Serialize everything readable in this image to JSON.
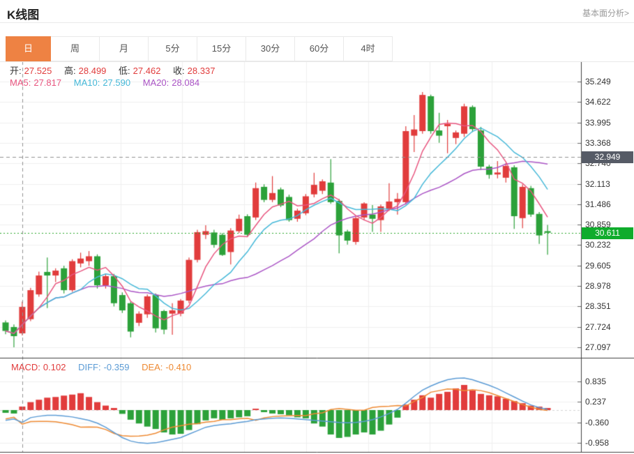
{
  "header": {
    "title": "K线图",
    "link": "基本面分析>"
  },
  "tabs": [
    {
      "name": "tab-day",
      "label": "日",
      "active": true
    },
    {
      "name": "tab-week",
      "label": "周",
      "active": false
    },
    {
      "name": "tab-month",
      "label": "月",
      "active": false
    },
    {
      "name": "tab-5min",
      "label": "5分",
      "active": false
    },
    {
      "name": "tab-15min",
      "label": "15分",
      "active": false
    },
    {
      "name": "tab-30min",
      "label": "30分",
      "active": false
    },
    {
      "name": "tab-60min",
      "label": "60分",
      "active": false
    },
    {
      "name": "tab-4hour",
      "label": "4时",
      "active": false
    }
  ],
  "ohlc_row": {
    "open_label": "开:",
    "open": "27.525",
    "high_label": "高:",
    "high": "28.499",
    "low_label": "低:",
    "low": "27.462",
    "close_label": "收:",
    "close": "28.337"
  },
  "ma_row": {
    "ma5_label": "MA5:",
    "ma5": "27.817",
    "ma10_label": "MA10:",
    "ma10": "27.590",
    "ma20_label": "MA20:",
    "ma20": "28.084"
  },
  "macd_row": {
    "macd_label": "MACD:",
    "macd": "0.102",
    "diff_label": "DIFF:",
    "diff": "-0.359",
    "dea_label": "DEA:",
    "dea": "-0.410"
  },
  "colors": {
    "up": "#e13c3c",
    "down": "#2ca13a",
    "ma5": "#e8557f",
    "ma10": "#45b8d8",
    "ma20": "#aa54c5",
    "diff_line": "#5b9bd5",
    "dea_line": "#ee8a33",
    "value_red": "#e13c3c",
    "tab_accent": "#ee8243",
    "badge_dark": "#565b66",
    "badge_green": "#0fac2c",
    "crosshair": "#909090",
    "last_price_line": "#2aa62a",
    "grid": "#efefef",
    "frame": "#3f3f3f"
  },
  "chart_data": {
    "type": "candlestick_with_macd",
    "title": "K线图 (daily candlestick chart with MA5/MA10/MA20 overlays and MACD pane)",
    "price_axis_ticks": [
      "35.249",
      "34.622",
      "33.995",
      "33.368",
      "32.740",
      "32.113",
      "31.486",
      "30.859",
      "30.232",
      "29.605",
      "28.978",
      "28.351",
      "27.724",
      "27.097"
    ],
    "macd_axis_ticks": [
      "0.835",
      "0.237",
      "-0.360",
      "-0.958"
    ],
    "crosshair_price": "32.949",
    "crosshair_candle_index": 2,
    "last_price": "30.611",
    "legend": [
      "MA5",
      "MA10",
      "MA20",
      "DIFF",
      "DEA",
      "MACD"
    ],
    "candles_ohlc": [
      [
        27.86,
        27.92,
        27.5,
        27.6
      ],
      [
        27.72,
        27.8,
        27.1,
        27.44
      ],
      [
        27.525,
        28.499,
        27.462,
        28.337
      ],
      [
        27.96,
        28.92,
        27.9,
        28.85
      ],
      [
        28.72,
        29.42,
        28.65,
        29.3
      ],
      [
        29.41,
        29.85,
        28.3,
        29.3
      ],
      [
        29.3,
        29.52,
        29.1,
        29.45
      ],
      [
        29.52,
        29.6,
        28.75,
        28.85
      ],
      [
        28.85,
        29.8,
        28.8,
        29.74
      ],
      [
        29.67,
        30.0,
        29.55,
        29.82
      ],
      [
        29.74,
        30.05,
        29.6,
        29.89
      ],
      [
        29.89,
        29.95,
        28.9,
        29.0
      ],
      [
        29.0,
        29.35,
        28.9,
        29.28
      ],
      [
        29.28,
        29.35,
        28.35,
        28.45
      ],
      [
        28.7,
        28.78,
        28.15,
        28.23
      ],
      [
        28.45,
        28.5,
        27.4,
        27.58
      ],
      [
        27.85,
        28.2,
        27.75,
        28.13
      ],
      [
        28.11,
        28.72,
        28.0,
        28.66
      ],
      [
        28.7,
        28.75,
        27.55,
        27.68
      ],
      [
        28.21,
        28.25,
        27.5,
        27.64
      ],
      [
        28.13,
        28.45,
        27.48,
        28.23
      ],
      [
        28.13,
        28.58,
        28.05,
        28.53
      ],
      [
        28.53,
        29.85,
        28.45,
        29.78
      ],
      [
        29.78,
        30.7,
        29.7,
        30.63
      ],
      [
        30.55,
        30.84,
        30.42,
        30.66
      ],
      [
        30.62,
        30.7,
        30.15,
        30.24
      ],
      [
        30.55,
        30.6,
        29.9,
        29.93
      ],
      [
        30.02,
        30.75,
        29.64,
        30.68
      ],
      [
        30.66,
        31.17,
        30.6,
        31.04
      ],
      [
        31.12,
        31.18,
        30.5,
        30.55
      ],
      [
        31.08,
        32.15,
        31.0,
        31.98
      ],
      [
        32.02,
        32.1,
        31.55,
        31.62
      ],
      [
        31.62,
        32.35,
        31.55,
        31.83
      ],
      [
        31.94,
        32.0,
        31.4,
        31.45
      ],
      [
        31.71,
        31.78,
        30.95,
        31.0
      ],
      [
        31.04,
        31.35,
        30.95,
        31.29
      ],
      [
        31.21,
        31.8,
        31.15,
        31.73
      ],
      [
        31.79,
        32.45,
        31.7,
        32.08
      ],
      [
        31.9,
        32.25,
        31.8,
        32.19
      ],
      [
        32.15,
        32.87,
        31.5,
        31.55
      ],
      [
        31.59,
        31.65,
        29.98,
        30.53
      ],
      [
        30.65,
        30.7,
        30.25,
        30.37
      ],
      [
        30.33,
        31.1,
        30.25,
        31.06
      ],
      [
        31.08,
        31.55,
        31.0,
        31.51
      ],
      [
        31.17,
        31.46,
        30.64,
        31.04
      ],
      [
        31.0,
        31.48,
        30.64,
        31.42
      ],
      [
        31.34,
        32.13,
        31.28,
        31.57
      ],
      [
        31.55,
        31.83,
        31.17,
        31.65
      ],
      [
        31.55,
        33.88,
        31.48,
        33.73
      ],
      [
        33.59,
        34.22,
        33.09,
        33.78
      ],
      [
        33.73,
        34.93,
        33.65,
        34.84
      ],
      [
        34.8,
        34.85,
        33.65,
        33.73
      ],
      [
        33.75,
        34.29,
        33.37,
        33.59
      ],
      [
        33.88,
        34.07,
        33.05,
        33.95
      ],
      [
        33.52,
        33.75,
        33.33,
        33.69
      ],
      [
        33.65,
        34.57,
        33.55,
        34.49
      ],
      [
        34.47,
        34.52,
        33.7,
        33.79
      ],
      [
        33.75,
        33.86,
        32.54,
        32.64
      ],
      [
        32.64,
        32.7,
        32.27,
        32.39
      ],
      [
        32.4,
        32.81,
        32.28,
        32.46
      ],
      [
        32.3,
        32.75,
        32.15,
        32.66
      ],
      [
        32.62,
        32.68,
        30.73,
        31.12
      ],
      [
        31.06,
        32.1,
        30.75,
        32.02
      ],
      [
        31.98,
        32.05,
        31.1,
        31.17
      ],
      [
        31.19,
        31.25,
        30.27,
        30.53
      ],
      [
        30.66,
        30.85,
        29.94,
        30.611
      ]
    ],
    "ma_periods": [
      5,
      10,
      20
    ],
    "macd_bars": [
      -0.08,
      -0.1,
      0.102,
      0.23,
      0.3,
      0.36,
      0.38,
      0.42,
      0.45,
      0.49,
      0.38,
      0.23,
      0.13,
      0.06,
      -0.11,
      -0.28,
      -0.39,
      -0.48,
      -0.55,
      -0.65,
      -0.71,
      -0.69,
      -0.58,
      -0.41,
      -0.3,
      -0.24,
      -0.28,
      -0.24,
      -0.21,
      -0.18,
      0.04,
      -0.06,
      -0.1,
      -0.12,
      -0.15,
      -0.21,
      -0.24,
      -0.39,
      -0.48,
      -0.71,
      -0.81,
      -0.78,
      -0.71,
      -0.65,
      -0.71,
      -0.6,
      -0.42,
      -0.22,
      0.16,
      0.3,
      0.43,
      0.36,
      0.47,
      0.53,
      0.63,
      0.73,
      0.57,
      0.47,
      0.43,
      0.4,
      0.33,
      0.26,
      0.2,
      0.13,
      0.1,
      0.06
    ],
    "macd_diff": [
      -0.3,
      -0.26,
      -0.359,
      -0.22,
      -0.18,
      -0.15,
      -0.15,
      -0.17,
      -0.2,
      -0.25,
      -0.3,
      -0.38,
      -0.5,
      -0.65,
      -0.8,
      -0.9,
      -0.95,
      -0.97,
      -0.95,
      -0.9,
      -0.85,
      -0.8,
      -0.7,
      -0.6,
      -0.5,
      -0.45,
      -0.42,
      -0.4,
      -0.36,
      -0.33,
      -0.28,
      -0.26,
      -0.24,
      -0.23,
      -0.24,
      -0.26,
      -0.28,
      -0.3,
      -0.32,
      -0.34,
      -0.36,
      -0.37,
      -0.36,
      -0.33,
      -0.28,
      -0.2,
      -0.1,
      0.02,
      0.2,
      0.4,
      0.58,
      0.7,
      0.8,
      0.88,
      0.92,
      0.93,
      0.88,
      0.8,
      0.72,
      0.62,
      0.5,
      0.38,
      0.26,
      0.15,
      0.07,
      0.02
    ]
  }
}
